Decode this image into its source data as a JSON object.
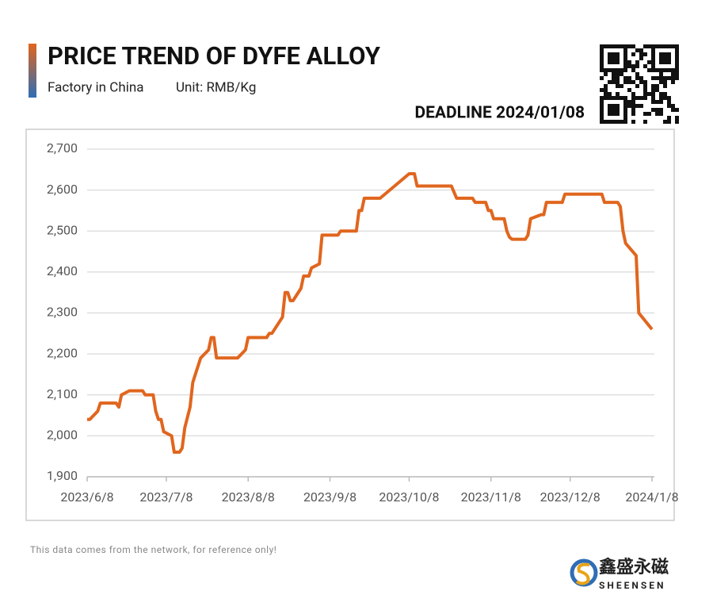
{
  "header": {
    "title": "PRICE TREND OF DYFE ALLOY",
    "subtitle": "Factory in China",
    "unit": "Unit: RMB/Kg",
    "deadline": "DEADLINE 2024/01/08"
  },
  "footer": {
    "note": "This data comes from the network, for reference only!",
    "brand": "鑫盛永磁",
    "brand_en": "SHEENSEN"
  },
  "chart_data": {
    "type": "line",
    "x": [
      "2023/6/8",
      "2023/6/9",
      "2023/6/12",
      "2023/6/13",
      "2023/6/19",
      "2023/6/20",
      "2023/6/21",
      "2023/6/24",
      "2023/6/29",
      "2023/6/30",
      "2023/7/3",
      "2023/7/4",
      "2023/7/5",
      "2023/7/6",
      "2023/7/7",
      "2023/7/10",
      "2023/7/11",
      "2023/7/13",
      "2023/7/14",
      "2023/7/15",
      "2023/7/17",
      "2023/7/18",
      "2023/7/19",
      "2023/7/21",
      "2023/7/24",
      "2023/7/25",
      "2023/7/26",
      "2023/7/27",
      "2023/8/4",
      "2023/8/7",
      "2023/8/8",
      "2023/8/15",
      "2023/8/16",
      "2023/8/17",
      "2023/8/21",
      "2023/8/22",
      "2023/8/23",
      "2023/8/24",
      "2023/8/25",
      "2023/8/28",
      "2023/8/29",
      "2023/8/31",
      "2023/9/1",
      "2023/9/4",
      "2023/9/5",
      "2023/9/11",
      "2023/9/12",
      "2023/9/18",
      "2023/9/19",
      "2023/9/20",
      "2023/9/21",
      "2023/9/27",
      "2023/10/8",
      "2023/10/10",
      "2023/10/11",
      "2023/10/24",
      "2023/10/26",
      "2023/11/1",
      "2023/11/2",
      "2023/11/6",
      "2023/11/7",
      "2023/11/8",
      "2023/11/9",
      "2023/11/13",
      "2023/11/14",
      "2023/11/15",
      "2023/11/16",
      "2023/11/21",
      "2023/11/22",
      "2023/11/23",
      "2023/11/27",
      "2023/11/28",
      "2023/11/29",
      "2023/12/5",
      "2023/12/6",
      "2023/12/20",
      "2023/12/21",
      "2023/12/26",
      "2023/12/27",
      "2023/12/28",
      "2023/12/29",
      "2024/1/2",
      "2024/1/3",
      "2024/1/8"
    ],
    "series": [
      {
        "name": "DyFe Alloy",
        "color": "#e0661e",
        "values": [
          2040,
          2040,
          2060,
          2080,
          2080,
          2070,
          2100,
          2110,
          2110,
          2100,
          2100,
          2060,
          2040,
          2040,
          2010,
          2000,
          1960,
          1960,
          1970,
          2020,
          2070,
          2130,
          2150,
          2190,
          2210,
          2240,
          2240,
          2190,
          2190,
          2210,
          2240,
          2240,
          2250,
          2250,
          2290,
          2350,
          2350,
          2330,
          2330,
          2360,
          2390,
          2390,
          2410,
          2420,
          2490,
          2490,
          2500,
          2500,
          2550,
          2550,
          2580,
          2580,
          2640,
          2640,
          2610,
          2610,
          2580,
          2580,
          2570,
          2570,
          2550,
          2550,
          2530,
          2530,
          2500,
          2485,
          2480,
          2480,
          2490,
          2530,
          2540,
          2540,
          2570,
          2570,
          2590,
          2590,
          2570,
          2570,
          2560,
          2500,
          2470,
          2440,
          2300,
          2260
        ]
      }
    ],
    "xlim": [
      "2023/6/8",
      "2024/1/8"
    ],
    "xticks": [
      "2023/6/8",
      "2023/7/8",
      "2023/8/8",
      "2023/9/8",
      "2023/10/8",
      "2023/11/8",
      "2023/12/8",
      "2024/1/8"
    ],
    "ylim": [
      1900,
      2700
    ],
    "yticks": [
      {
        "value": 1900,
        "label": "1,900"
      },
      {
        "value": 2000,
        "label": "2,000"
      },
      {
        "value": 2100,
        "label": "2,100"
      },
      {
        "value": 2200,
        "label": "2,200"
      },
      {
        "value": 2300,
        "label": "2,300"
      },
      {
        "value": 2400,
        "label": "2,400"
      },
      {
        "value": 2500,
        "label": "2,500"
      },
      {
        "value": 2600,
        "label": "2,600"
      },
      {
        "value": 2700,
        "label": "2,700"
      }
    ],
    "grid": true
  }
}
